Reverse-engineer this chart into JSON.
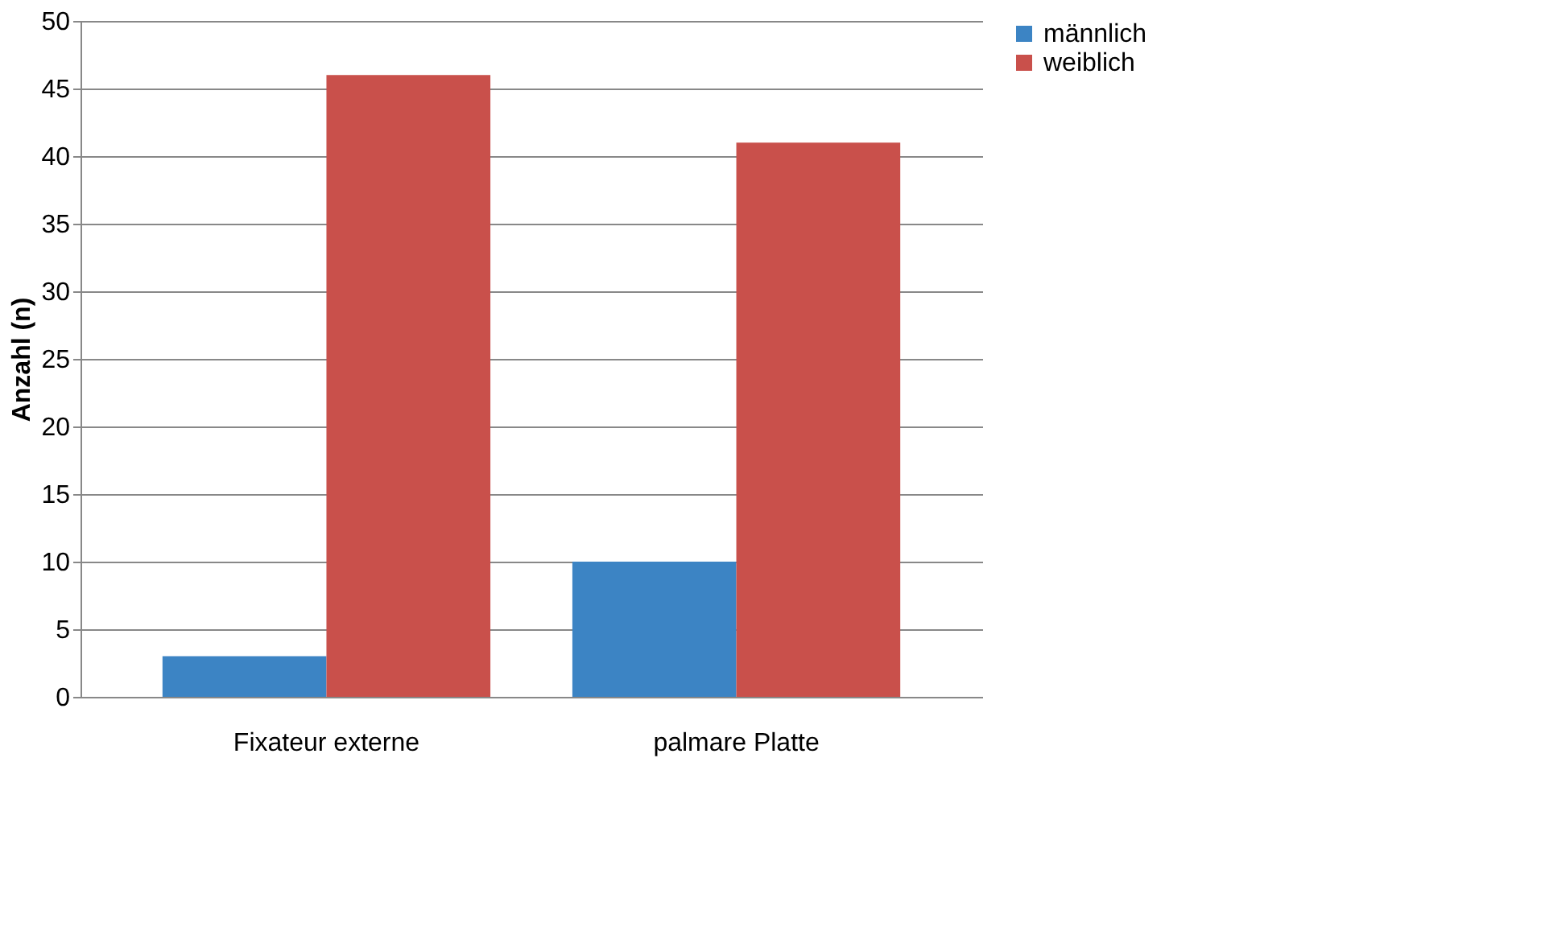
{
  "chart_data": {
    "type": "bar",
    "ylabel": "Anzahl (n)",
    "categories": [
      "Fixateur externe",
      "palmare Platte"
    ],
    "series": [
      {
        "name": "männlich",
        "color": "#3c84c4",
        "values": [
          3,
          10
        ]
      },
      {
        "name": "weiblich",
        "color": "#c9504b",
        "values": [
          46,
          41
        ]
      }
    ],
    "ylim": [
      0,
      50
    ],
    "yticks": [
      0,
      5,
      10,
      15,
      20,
      25,
      30,
      35,
      40,
      45,
      50
    ],
    "grid": "y",
    "legend": "right"
  }
}
